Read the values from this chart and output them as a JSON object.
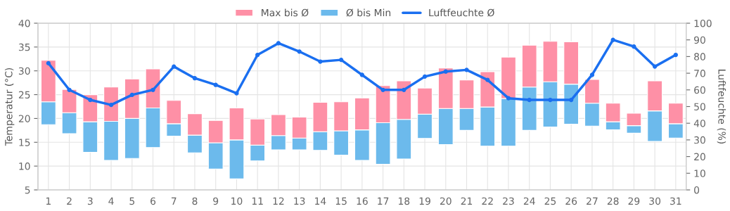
{
  "chart_data": {
    "type": "bar",
    "legend": "top",
    "grid": true,
    "marker": "circle",
    "line_style": "solid",
    "categories": [
      "1",
      "2",
      "3",
      "4",
      "5",
      "6",
      "7",
      "8",
      "9",
      "10",
      "11",
      "12",
      "13",
      "14",
      "15",
      "16",
      "17",
      "18",
      "19",
      "20",
      "21",
      "22",
      "23",
      "24",
      "25",
      "26",
      "27",
      "28",
      "29",
      "30",
      "31"
    ],
    "series": [
      {
        "name": "Ø bis Min",
        "color": "#6cbaec",
        "base": [
          18.7,
          16.8,
          12.9,
          11.2,
          11.6,
          13.9,
          16.3,
          12.8,
          9.4,
          7.3,
          11.1,
          13.4,
          13.4,
          13.3,
          12.3,
          11.2,
          10.4,
          11.5,
          15.8,
          14.5,
          17.5,
          14.2,
          14.2,
          17.5,
          18.2,
          18.8,
          18.4,
          17.6,
          16.9,
          15.2,
          15.9
        ],
        "values": [
          4.8,
          4.4,
          6.4,
          8.2,
          8.4,
          8.3,
          2.6,
          3.7,
          5.5,
          8.2,
          3.3,
          3.0,
          2.5,
          3.9,
          5.1,
          6.4,
          8.7,
          8.3,
          5.1,
          7.6,
          4.6,
          8.2,
          10.0,
          9.1,
          9.5,
          8.4,
          4.8,
          1.7,
          1.6,
          6.4,
          3.0
        ]
      },
      {
        "name": "Max bis Ø",
        "color": "#fe90a6",
        "base": [
          23.5,
          21.2,
          19.3,
          19.4,
          20.0,
          22.2,
          18.9,
          16.5,
          14.9,
          15.5,
          14.4,
          16.4,
          15.9,
          17.2,
          17.4,
          17.6,
          19.1,
          19.8,
          20.9,
          22.1,
          22.1,
          22.4,
          24.2,
          26.6,
          27.7,
          27.2,
          23.2,
          19.3,
          18.5,
          21.6,
          18.9
        ],
        "values": [
          8.7,
          4.9,
          5.7,
          7.2,
          8.3,
          8.2,
          4.9,
          4.5,
          4.7,
          6.7,
          5.5,
          4.4,
          4.4,
          6.2,
          6.1,
          6.7,
          7.8,
          8.1,
          5.5,
          8.5,
          6.0,
          7.4,
          8.7,
          8.8,
          8.5,
          8.9,
          5.0,
          3.9,
          2.6,
          6.3,
          4.3
        ]
      },
      {
        "name": "Luftfeuchte Ø",
        "type": "line",
        "axis": "y2",
        "color": "#1a6ff0",
        "values": [
          76,
          60,
          54,
          51,
          57,
          60,
          74,
          67,
          63,
          58,
          81,
          88,
          83,
          77,
          78,
          69,
          60,
          60,
          68,
          71,
          72,
          66,
          55,
          54,
          54,
          54,
          69,
          90,
          86,
          74,
          81
        ]
      }
    ],
    "ylabel": "Temperatur (°C)",
    "y2label": "Luftfeuchte (%)",
    "ylim": [
      5,
      40
    ],
    "yticks": [
      5,
      10,
      15,
      20,
      25,
      30,
      35,
      40
    ],
    "y2lim": [
      0,
      100
    ],
    "y2ticks": [
      0,
      10,
      20,
      30,
      40,
      50,
      60,
      70,
      80,
      90,
      100
    ]
  }
}
